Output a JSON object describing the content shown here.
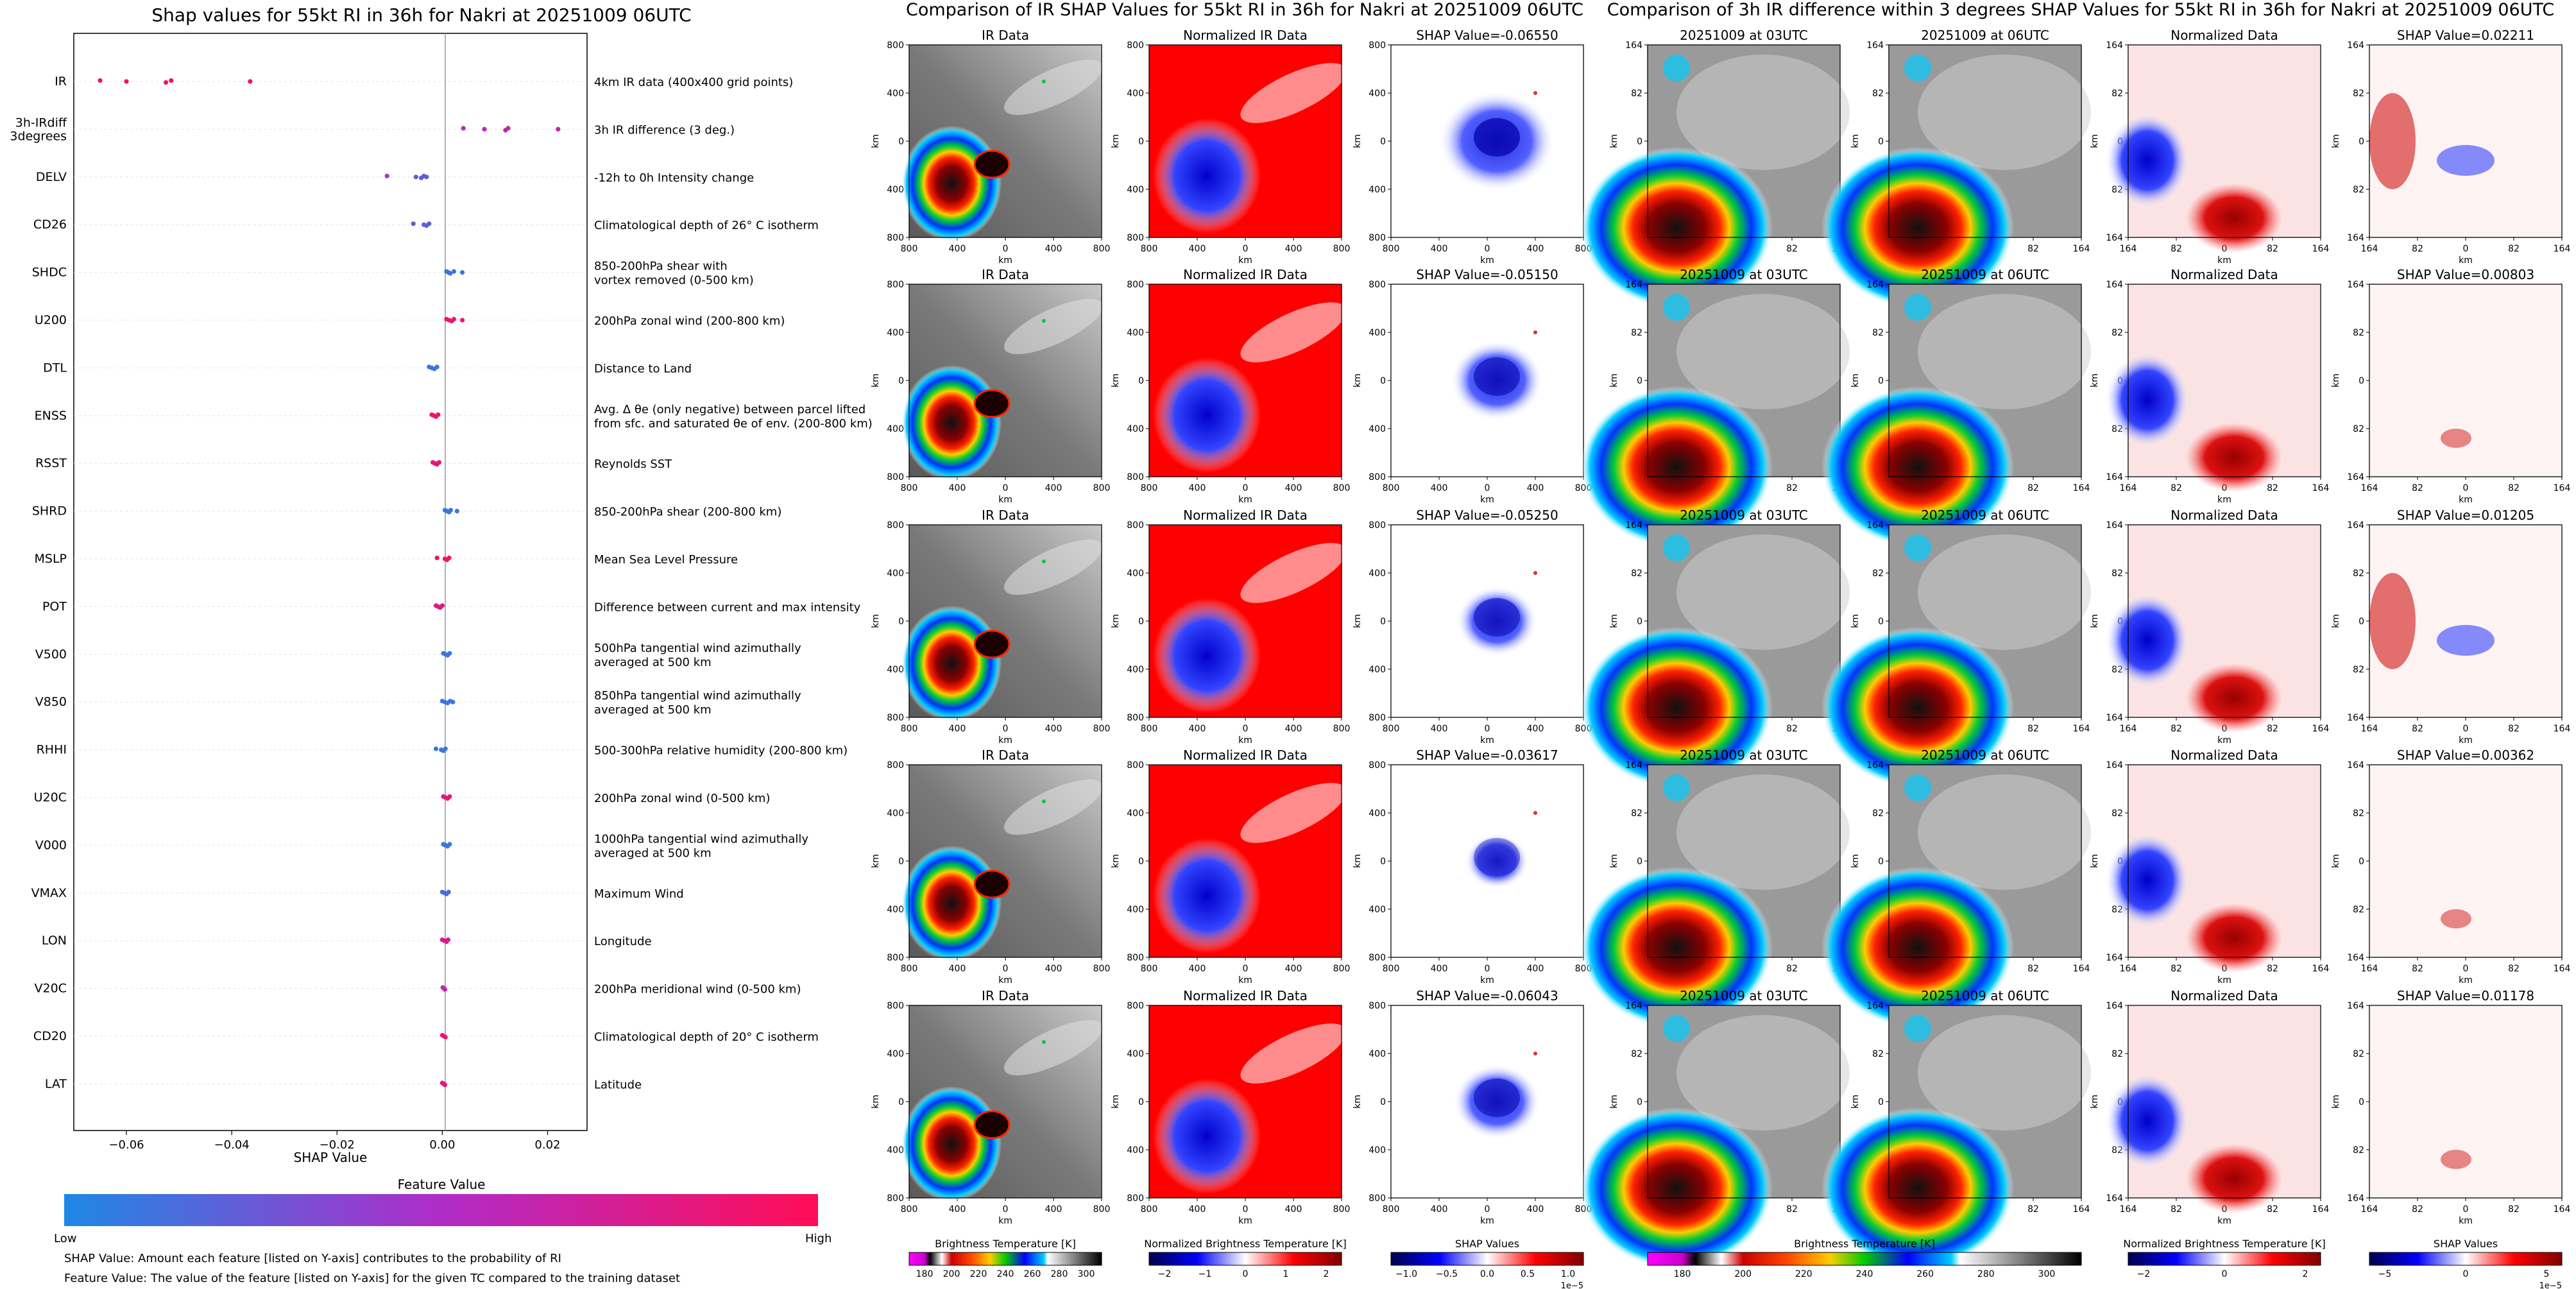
{
  "colors": {
    "low": "#1E88E5",
    "high": "#FF0D57",
    "mid": "#B02CC8",
    "zero_line": "#999999"
  },
  "summary_plot": {
    "title": "Shap values for 55kt RI in 36h for Nakri at 20251009 06UTC",
    "xlabel": "SHAP Value",
    "colorbar_title": "Feature Value",
    "colorbar_low": "Low",
    "colorbar_high": "High",
    "footnote_1": "SHAP Value: Amount each feature [listed on Y-axis] contributes to the probability of RI",
    "footnote_2": "Feature Value: The value of the feature [listed on Y-axis] for the given TC compared to the training dataset"
  },
  "chart_data": [
    {
      "type": "scatter",
      "title": "Shap values for 55kt RI in 36h for Nakri at 20251009 06UTC",
      "xlabel": "SHAP Value",
      "ylabel": "",
      "xlim": [
        -0.07,
        0.0275
      ],
      "xticks": [
        -0.06,
        -0.04,
        -0.02,
        0.0,
        0.02
      ],
      "xtick_labels": [
        "−0.06",
        "−0.04",
        "−0.02",
        "0.00",
        "0.02"
      ],
      "features": [
        {
          "code": "IR",
          "desc": "4km IR data (400x400 grid points)",
          "points": [
            [
              -0.065,
              1
            ],
            [
              -0.06,
              1
            ],
            [
              -0.0525,
              1
            ],
            [
              -0.0515,
              1
            ],
            [
              -0.0365,
              1
            ]
          ]
        },
        {
          "code": "3h-IRdiff\n3degrees",
          "desc": "3h IR difference (3 deg.)",
          "points": [
            [
              0.004,
              0.55
            ],
            [
              0.008,
              0.6
            ],
            [
              0.012,
              0.65
            ],
            [
              0.0125,
              0.7
            ],
            [
              0.022,
              0.6
            ]
          ]
        },
        {
          "code": "DELV",
          "desc": "-12h to 0h Intensity change",
          "points": [
            [
              -0.0105,
              0.45
            ],
            [
              -0.005,
              0.25
            ],
            [
              -0.004,
              0.2
            ],
            [
              -0.0035,
              0.3
            ],
            [
              -0.003,
              0.2
            ]
          ]
        },
        {
          "code": "CD26",
          "desc": "Climatological depth of 26° C isotherm",
          "points": [
            [
              -0.0055,
              0.3
            ],
            [
              -0.0035,
              0.25
            ],
            [
              -0.003,
              0.2
            ],
            [
              -0.0025,
              0.2
            ]
          ]
        },
        {
          "code": "SHDC",
          "desc": "850-200hPa shear with\nvortex removed (0-500 km)",
          "points": [
            [
              0.0008,
              0.1
            ],
            [
              0.0012,
              0.1
            ],
            [
              0.0015,
              0.1
            ],
            [
              0.0022,
              0.15
            ],
            [
              0.0038,
              0.1
            ]
          ]
        },
        {
          "code": "U200",
          "desc": "200hPa zonal wind (200-800 km)",
          "points": [
            [
              0.0008,
              0.95
            ],
            [
              0.0013,
              0.9
            ],
            [
              0.0018,
              0.85
            ],
            [
              0.0022,
              0.9
            ],
            [
              0.0038,
              0.9
            ]
          ]
        },
        {
          "code": "DTL",
          "desc": "Distance to Land",
          "points": [
            [
              -0.0025,
              0.1
            ],
            [
              -0.002,
              0.1
            ],
            [
              -0.0015,
              0.1
            ],
            [
              -0.001,
              0.1
            ]
          ]
        },
        {
          "code": "ENSS",
          "desc": "Avg. Δ θe (only negative) between parcel lifted\nfrom sfc. and saturated θe of env. (200-800 km)",
          "points": [
            [
              -0.002,
              0.9
            ],
            [
              -0.0016,
              0.9
            ],
            [
              -0.0012,
              0.9
            ],
            [
              -0.0008,
              0.9
            ]
          ]
        },
        {
          "code": "RSST",
          "desc": "Reynolds SST",
          "points": [
            [
              -0.0018,
              0.85
            ],
            [
              -0.0014,
              0.85
            ],
            [
              -0.001,
              0.85
            ],
            [
              -0.0006,
              0.85
            ]
          ]
        },
        {
          "code": "SHRD",
          "desc": "850-200hPa shear (200-800 km)",
          "points": [
            [
              0.0005,
              0.1
            ],
            [
              0.0009,
              0.1
            ],
            [
              0.0013,
              0.1
            ],
            [
              0.0016,
              0.1
            ],
            [
              0.0028,
              0.1
            ]
          ]
        },
        {
          "code": "MSLP",
          "desc": "Mean Sea Level Pressure",
          "points": [
            [
              -0.001,
              1
            ],
            [
              0.0005,
              0.9
            ],
            [
              0.0009,
              0.9
            ],
            [
              0.0013,
              0.9
            ]
          ]
        },
        {
          "code": "POT",
          "desc": "Difference between current and max intensity",
          "points": [
            [
              -0.0012,
              0.8
            ],
            [
              -0.0008,
              0.8
            ],
            [
              -0.0004,
              0.8
            ],
            [
              0.0,
              0.8
            ]
          ]
        },
        {
          "code": "V500",
          "desc": "500hPa tangential wind azimuthally\naveraged at 500 km",
          "points": [
            [
              0.0002,
              0.1
            ],
            [
              0.0006,
              0.1
            ],
            [
              0.001,
              0.1
            ],
            [
              0.0014,
              0.1
            ]
          ]
        },
        {
          "code": "V850",
          "desc": "850hPa tangential wind azimuthally\naveraged at 500 km",
          "points": [
            [
              0.0,
              0.1
            ],
            [
              0.0005,
              0.1
            ],
            [
              0.001,
              0.1
            ],
            [
              0.0015,
              0.1
            ],
            [
              0.002,
              0.1
            ]
          ]
        },
        {
          "code": "RHHI",
          "desc": "500-300hPa relative humidity (200-800 km)",
          "points": [
            [
              -0.0012,
              0.1
            ],
            [
              -0.0002,
              0.1
            ],
            [
              0.0002,
              0.1
            ],
            [
              0.0006,
              0.1
            ]
          ]
        },
        {
          "code": "U20C",
          "desc": "200hPa zonal wind (0-500 km)",
          "points": [
            [
              0.0002,
              0.85
            ],
            [
              0.0006,
              0.85
            ],
            [
              0.001,
              0.85
            ],
            [
              0.0014,
              0.85
            ]
          ]
        },
        {
          "code": "V000",
          "desc": "1000hPa tangential wind azimuthally\naveraged at 500 km",
          "points": [
            [
              0.0002,
              0.1
            ],
            [
              0.0006,
              0.1
            ],
            [
              0.001,
              0.1
            ],
            [
              0.0014,
              0.1
            ]
          ]
        },
        {
          "code": "VMAX",
          "desc": "Maximum Wind",
          "points": [
            [
              0.0,
              0.15
            ],
            [
              0.0004,
              0.15
            ],
            [
              0.0008,
              0.15
            ],
            [
              0.0012,
              0.15
            ]
          ]
        },
        {
          "code": "LON",
          "desc": "Longitude",
          "points": [
            [
              0.0,
              0.8
            ],
            [
              0.0004,
              0.8
            ],
            [
              0.0008,
              0.8
            ],
            [
              0.0011,
              0.8
            ]
          ]
        },
        {
          "code": "V20C",
          "desc": "200hPa meridional wind (0-500 km)",
          "points": [
            [
              0.0001,
              0.6
            ],
            [
              0.0003,
              0.6
            ],
            [
              0.0005,
              0.6
            ]
          ]
        },
        {
          "code": "CD20",
          "desc": "Climatological depth of 20° C isotherm",
          "points": [
            [
              0.0,
              0.85
            ],
            [
              0.0003,
              0.85
            ],
            [
              0.0006,
              0.85
            ]
          ]
        },
        {
          "code": "LAT",
          "desc": "Latitude",
          "points": [
            [
              0.0,
              0.85
            ],
            [
              0.0003,
              0.85
            ],
            [
              0.0005,
              0.85
            ]
          ]
        }
      ]
    },
    {
      "type": "heatmap",
      "title": "Comparison of IR SHAP Values for 55kt RI in 36h for Nakri at 20251009 06UTC",
      "column_titles": [
        "IR Data",
        "Normalized IR Data"
      ],
      "shap_titles": [
        "SHAP Value=-0.06550",
        "SHAP Value=-0.05150",
        "SHAP Value=-0.05250",
        "SHAP Value=-0.03617",
        "SHAP Value=-0.06043"
      ],
      "xlabel": "km",
      "ylabel": "km",
      "xticks": [
        "800",
        "400",
        "0",
        "400",
        "800"
      ],
      "yticks": [
        "800",
        "400",
        "0",
        "400",
        "800"
      ],
      "colorbars": [
        {
          "label": "Brightness Temperature [K]",
          "ticks": [
            "180",
            "200",
            "220",
            "240",
            "260",
            "280",
            "300"
          ]
        },
        {
          "label": "Normalized Brightness Temperature [K]",
          "ticks": [
            "−2",
            "−1",
            "0",
            "1",
            "2"
          ]
        },
        {
          "label": "SHAP Values",
          "ticks": [
            "−1.0",
            "−0.5",
            "0.0",
            "0.5",
            "1.0"
          ],
          "exponent": "1e−5"
        }
      ]
    },
    {
      "type": "heatmap",
      "title": "Comparison of 3h IR difference within 3 degrees SHAP Values for 55kt RI in 36h for Nakri at 20251009 06UTC",
      "column_titles": [
        "20251009 at 03UTC",
        "20251009 at 06UTC",
        "Normalized Data"
      ],
      "shap_titles": [
        "SHAP Value=0.02211",
        "SHAP Value=0.00803",
        "SHAP Value=0.01205",
        "SHAP Value=0.00362",
        "SHAP Value=0.01178"
      ],
      "xlabel": "km",
      "ylabel": "km",
      "xticks": [
        "164",
        "82",
        "0",
        "82",
        "164"
      ],
      "yticks": [
        "164",
        "82",
        "0",
        "82",
        "164"
      ],
      "colorbars": [
        {
          "label": "Brightness Temperature [K]",
          "ticks": [
            "180",
            "200",
            "220",
            "240",
            "260",
            "280",
            "300"
          ]
        },
        {
          "label": "Normalized Brightness Temperature [K]",
          "ticks": [
            "−2",
            "0",
            "2"
          ]
        },
        {
          "label": "SHAP Values",
          "ticks": [
            "−5",
            "0",
            "5"
          ],
          "exponent": "1e−5"
        }
      ]
    }
  ]
}
